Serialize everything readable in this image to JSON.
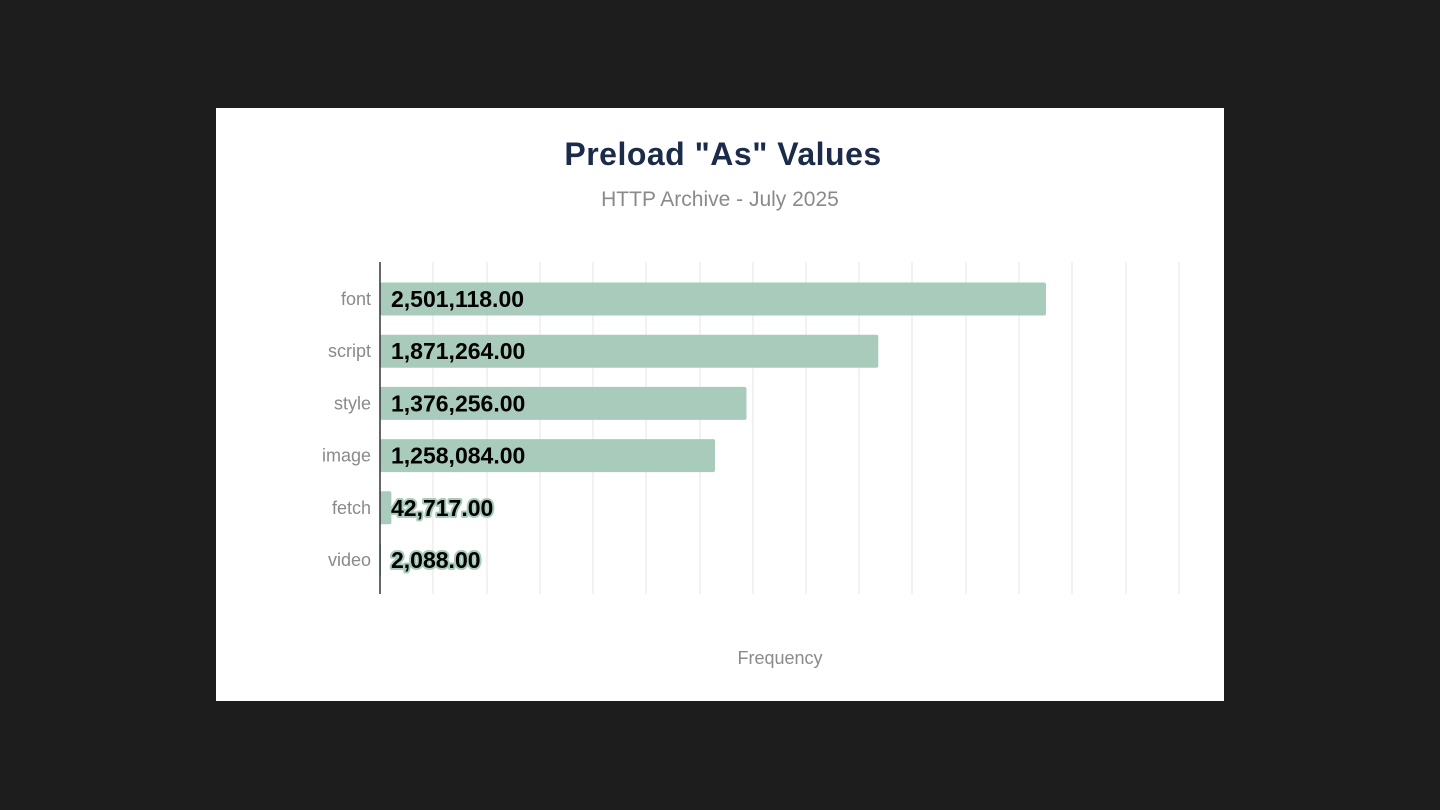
{
  "chart_data": {
    "type": "bar",
    "orientation": "horizontal",
    "title": "Preload \"As\" Values",
    "subtitle": "HTTP Archive - July 2025",
    "xlabel": "Frequency",
    "ylabel": "",
    "categories": [
      "font",
      "script",
      "style",
      "image",
      "fetch",
      "video"
    ],
    "values": [
      2501118,
      1871264,
      1376256,
      1258084,
      42717,
      2088
    ],
    "data_labels": [
      "2,501,118.00",
      "1,871,264.00",
      "1,376,256.00",
      "1,258,084.00",
      "42,717.00",
      "2,088.00"
    ],
    "xlim": [
      0,
      3000000
    ],
    "grid": true,
    "bar_color": "#a8cbbb",
    "title_color": "#1c2b4a"
  }
}
